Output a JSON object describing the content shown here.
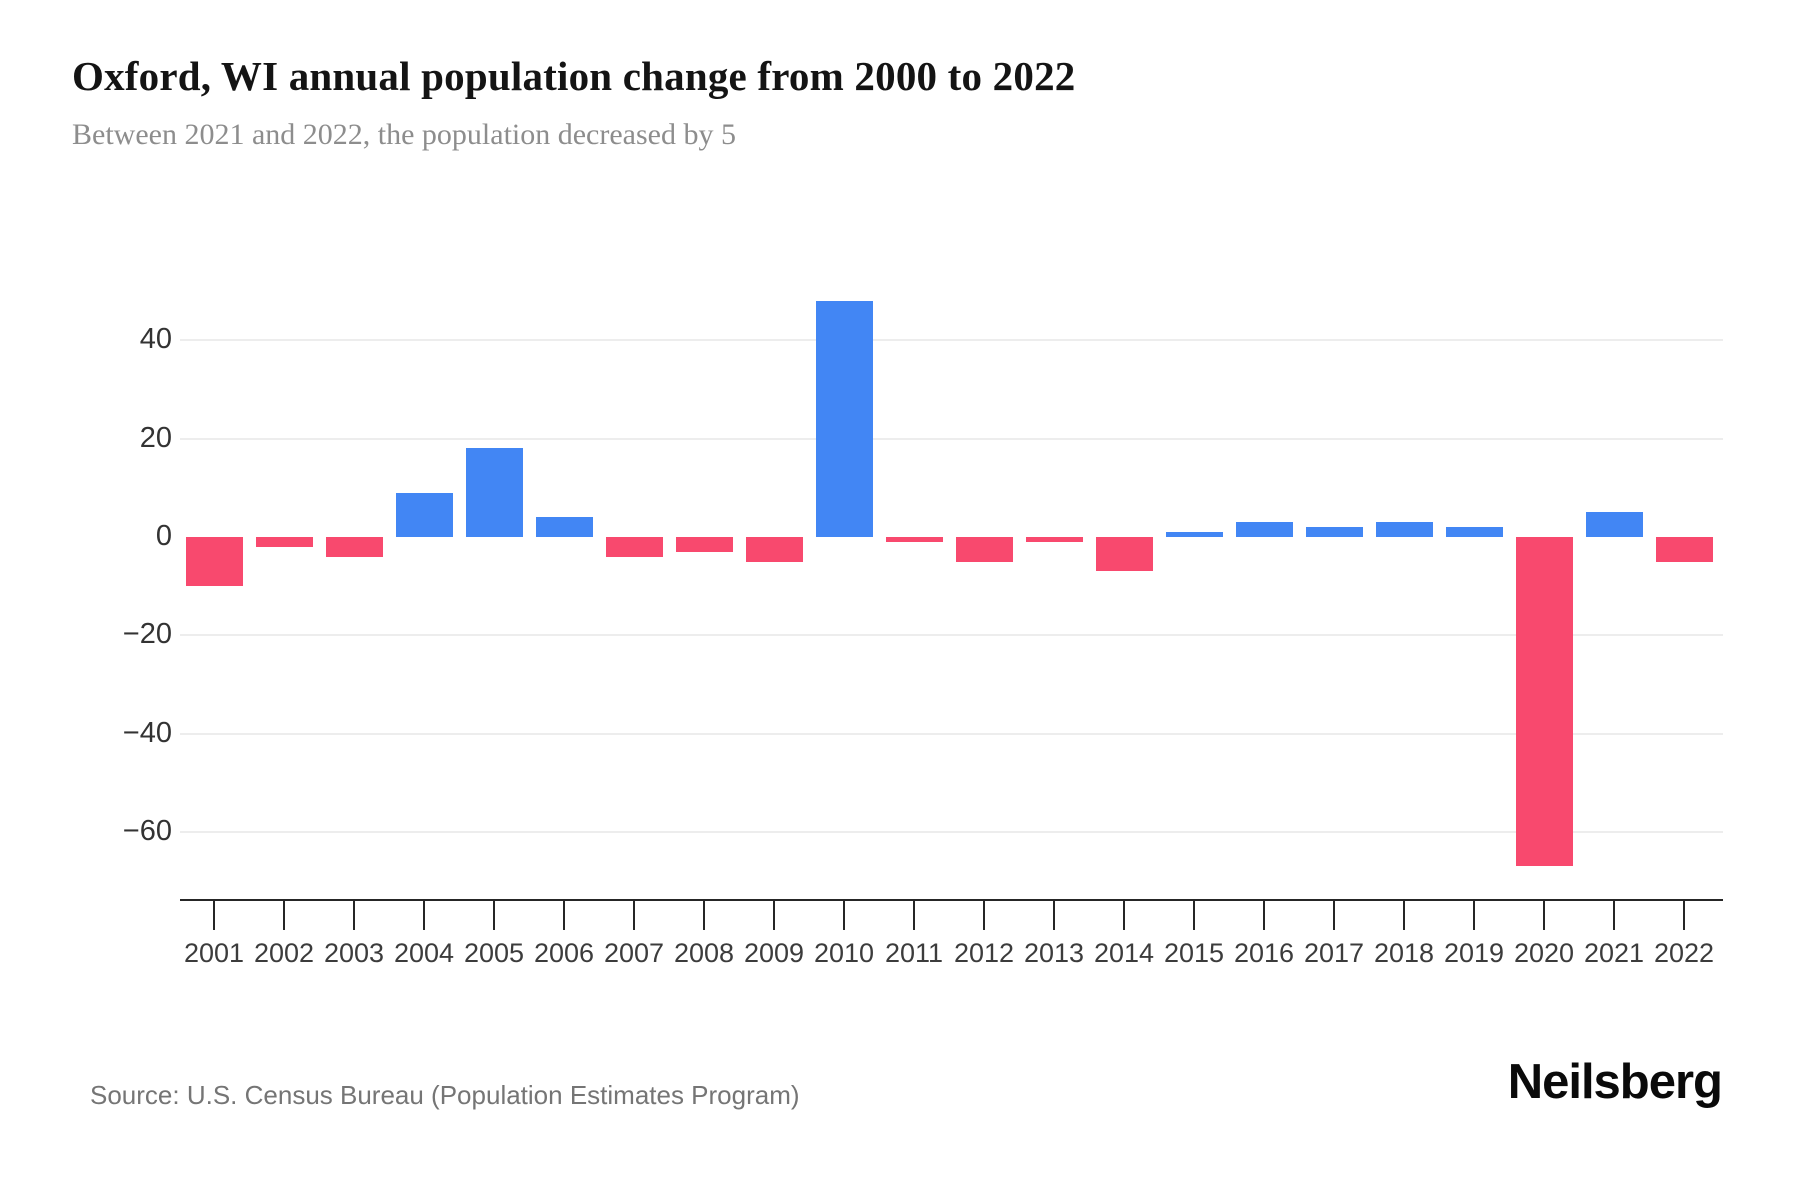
{
  "header": {
    "title": "Oxford, WI annual population change from 2000 to 2022",
    "subtitle": "Between 2021 and 2022, the population decreased by 5"
  },
  "footer": {
    "source": "Source: U.S. Census Bureau (Population Estimates Program)",
    "brand": "Neilsberg"
  },
  "chart_data": {
    "type": "bar",
    "title": "Oxford, WI annual population change from 2000 to 2022",
    "subtitle": "Between 2021 and 2022, the population decreased by 5",
    "categories": [
      "2001",
      "2002",
      "2003",
      "2004",
      "2005",
      "2006",
      "2007",
      "2008",
      "2009",
      "2010",
      "2011",
      "2012",
      "2013",
      "2014",
      "2015",
      "2016",
      "2017",
      "2018",
      "2019",
      "2020",
      "2021",
      "2022"
    ],
    "values": [
      -10,
      -2,
      -4,
      9,
      18,
      4,
      -4,
      -3,
      -5,
      48,
      -1,
      -5,
      -1,
      -7,
      1,
      3,
      2,
      3,
      2,
      -67,
      5,
      -5
    ],
    "xlabel": "",
    "ylabel": "",
    "ylim": [
      -74,
      60
    ],
    "y_ticks": [
      {
        "label": "40",
        "value": 40
      },
      {
        "label": "20",
        "value": 20
      },
      {
        "label": "0",
        "value": 0
      },
      {
        "label": "−20",
        "value": -20
      },
      {
        "label": "−40",
        "value": -40
      },
      {
        "label": "−60",
        "value": -60
      }
    ],
    "grid": "horizontal",
    "legend": "none",
    "colors": {
      "positive": "#4286F4",
      "negative": "#F8496E",
      "gridline": "#ededed",
      "axis": "#262626",
      "tick_label": "#3c3c3c"
    }
  }
}
